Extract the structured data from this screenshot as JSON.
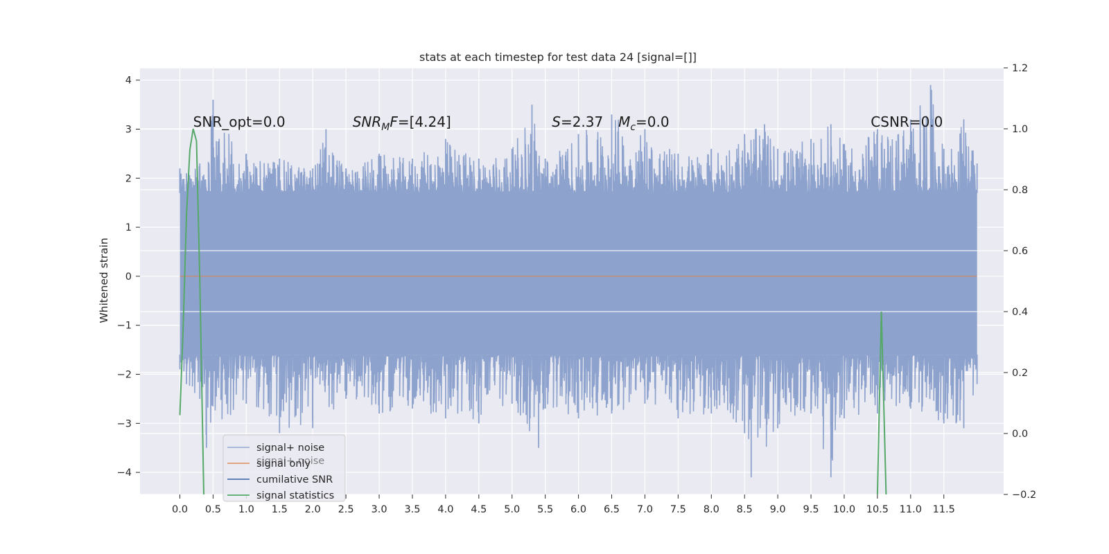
{
  "chart_data": {
    "type": "line",
    "title": "stats at each timestep for test data 24 [signal=[]]",
    "ylabel": "Whitened strain",
    "xlabel": "",
    "xlim": [
      -0.6,
      12.4
    ],
    "ylim": [
      -4.45,
      4.25
    ],
    "y2lim": [
      -0.2,
      1.2
    ],
    "xticks": [
      "0.0",
      "0.5",
      "1.0",
      "1.5",
      "2.0",
      "2.5",
      "3.0",
      "3.5",
      "4.0",
      "4.5",
      "5.0",
      "5.5",
      "6.0",
      "6.5",
      "7.0",
      "7.5",
      "8.0",
      "8.5",
      "9.0",
      "9.5",
      "10.0",
      "10.5",
      "11.0",
      "11.5"
    ],
    "yticks": [
      "4",
      "3",
      "2",
      "1",
      "0",
      "−1",
      "−2",
      "−3",
      "−4"
    ],
    "y2ticks": [
      "1.2",
      "1.0",
      "0.8",
      "0.6",
      "0.4",
      "0.2",
      "0.0",
      "−0.2"
    ],
    "grid": true,
    "legend_position": "lower-left",
    "series": [
      {
        "name": "signal+ noise",
        "color": "#8da2cc",
        "kind": "noise-band",
        "x_range": [
          0.0,
          12.0
        ],
        "upper_envelope": [
          [
            0.0,
            2.2
          ],
          [
            0.1,
            2.1
          ],
          [
            0.3,
            2.3
          ],
          [
            0.5,
            3.6
          ],
          [
            1.0,
            2.5
          ],
          [
            1.5,
            2.4
          ],
          [
            2.0,
            2.2
          ],
          [
            2.2,
            3.0
          ],
          [
            2.5,
            2.2
          ],
          [
            3.0,
            2.5
          ],
          [
            3.5,
            2.4
          ],
          [
            4.0,
            2.8
          ],
          [
            4.5,
            2.4
          ],
          [
            5.0,
            2.6
          ],
          [
            5.3,
            3.5
          ],
          [
            5.5,
            2.4
          ],
          [
            6.0,
            2.9
          ],
          [
            6.5,
            3.3
          ],
          [
            7.0,
            3.0
          ],
          [
            7.5,
            2.5
          ],
          [
            8.0,
            2.6
          ],
          [
            8.5,
            2.9
          ],
          [
            8.8,
            3.1
          ],
          [
            9.0,
            2.6
          ],
          [
            9.5,
            2.8
          ],
          [
            9.8,
            3.1
          ],
          [
            10.0,
            2.7
          ],
          [
            10.5,
            3.0
          ],
          [
            11.0,
            3.2
          ],
          [
            11.3,
            3.9
          ],
          [
            11.5,
            2.6
          ],
          [
            11.8,
            3.2
          ],
          [
            12.0,
            2.3
          ]
        ],
        "lower_envelope": [
          [
            0.0,
            -1.9
          ],
          [
            0.1,
            -2.2
          ],
          [
            0.3,
            -2.5
          ],
          [
            0.4,
            -3.5
          ],
          [
            1.0,
            -2.6
          ],
          [
            1.5,
            -3.2
          ],
          [
            2.0,
            -3.1
          ],
          [
            2.5,
            -2.5
          ],
          [
            3.0,
            -2.8
          ],
          [
            3.5,
            -2.7
          ],
          [
            4.0,
            -2.9
          ],
          [
            4.5,
            -3.0
          ],
          [
            5.0,
            -2.6
          ],
          [
            5.4,
            -3.5
          ],
          [
            5.5,
            -2.7
          ],
          [
            6.0,
            -2.9
          ],
          [
            6.5,
            -2.8
          ],
          [
            7.0,
            -2.6
          ],
          [
            7.5,
            -2.9
          ],
          [
            8.0,
            -2.8
          ],
          [
            8.5,
            -3.2
          ],
          [
            8.6,
            -4.1
          ],
          [
            9.0,
            -3.1
          ],
          [
            9.5,
            -2.8
          ],
          [
            9.8,
            -4.1
          ],
          [
            10.0,
            -2.9
          ],
          [
            10.5,
            -2.8
          ],
          [
            11.0,
            -2.7
          ],
          [
            11.5,
            -3.0
          ],
          [
            11.8,
            -3.1
          ],
          [
            12.0,
            -2.2
          ]
        ],
        "dense_band": [
          -1.6,
          1.7
        ]
      },
      {
        "name": "signal only",
        "color": "#dd8452",
        "kind": "flat",
        "x_range": [
          0.0,
          12.0
        ],
        "y": 0.0
      },
      {
        "name": "cumilative SNR",
        "color": "#4c72b0",
        "kind": "hidden",
        "points": []
      },
      {
        "name": "signal statistics",
        "color": "#55a868",
        "axis": "right",
        "kind": "line",
        "segments": [
          [
            [
              0.0,
              0.06
            ],
            [
              0.05,
              0.35
            ],
            [
              0.1,
              0.72
            ],
            [
              0.15,
              0.93
            ],
            [
              0.2,
              1.0
            ],
            [
              0.25,
              0.96
            ],
            [
              0.3,
              0.5
            ],
            [
              0.36,
              -0.2
            ]
          ],
          [
            [
              10.5,
              -0.2
            ],
            [
              10.56,
              0.4
            ],
            [
              10.63,
              -0.2
            ]
          ]
        ]
      }
    ],
    "annotations": [
      {
        "name": "snr-opt-annotation",
        "prefix": "SNR_opt=0.0",
        "x": 0.2,
        "y": 3.05
      },
      {
        "name": "snr-mf-annotation",
        "main": "SNR",
        "sub": "M",
        "italic_tail": "F",
        "suffix": "=[4.24]",
        "x": 2.6,
        "y": 3.05
      },
      {
        "name": "s-annotation",
        "main": "S",
        "suffix": "=2.37",
        "x": 5.6,
        "y": 3.05
      },
      {
        "name": "mc-annotation",
        "main": "M",
        "sub": "c",
        "suffix": "=0.0",
        "x": 6.6,
        "y": 3.05
      },
      {
        "name": "csnr-annotation",
        "prefix": "CSNR=0.0",
        "x": 10.4,
        "y": 3.05
      }
    ],
    "legend_ghost_text": "signal+ noise"
  }
}
